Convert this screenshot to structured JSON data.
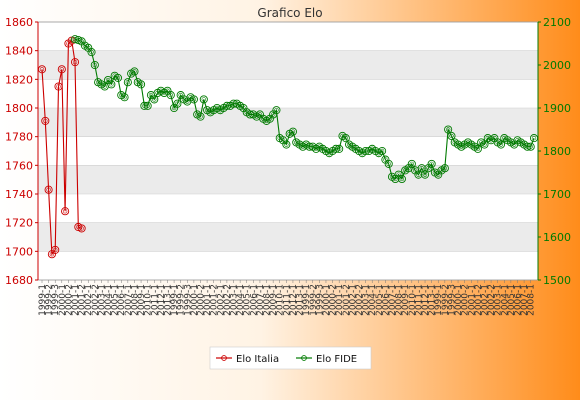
{
  "chart_data": {
    "type": "line",
    "title": "Grafico Elo",
    "colors": {
      "italia": "#cc0000",
      "fide": "#007a00",
      "band": "#ebebeb",
      "grid": "#cfcfcf"
    },
    "left_axis": {
      "ylim": [
        1680,
        1860
      ],
      "ticks": [
        1680,
        1700,
        1720,
        1740,
        1760,
        1780,
        1800,
        1820,
        1840,
        1860
      ]
    },
    "right_axis": {
      "ylim": [
        1500,
        2100
      ],
      "ticks": [
        1500,
        1600,
        1700,
        1800,
        1900,
        2000,
        2100
      ]
    },
    "x_count": 150,
    "x_tick_labels": [
      "1999-1",
      "1999-2",
      "1999-3",
      "2000-1",
      "2000-2",
      "2001-1",
      "2001-2",
      "2002-1",
      "2002-2",
      "2003-1",
      "2004-1",
      "2005-1",
      "2006-1",
      "2007-1",
      "2008-1",
      "2009-1",
      "2010-1",
      "2011-1",
      "2012-1",
      "2013-1"
    ],
    "legend_position": "bottom-center",
    "series": [
      {
        "name": "Elo Italia",
        "axis": "left",
        "x": [
          0,
          1,
          2,
          3,
          4,
          5,
          6,
          7,
          8,
          9,
          10,
          11,
          12,
          13
        ],
        "values": [
          1827,
          1791,
          1743,
          1698,
          1701,
          1815,
          1827,
          1728,
          1845,
          1847,
          1832,
          1717,
          1716,
          null
        ]
      },
      {
        "name": "Elo FIDE",
        "axis": "right",
        "x": [
          10,
          11,
          12,
          13,
          14,
          15,
          16,
          17,
          18,
          19,
          20,
          21,
          22,
          23,
          24,
          25,
          26,
          27,
          28,
          29,
          30,
          31,
          32,
          33,
          34,
          35,
          36,
          37,
          38,
          39,
          40,
          41,
          42,
          43,
          44,
          45,
          46,
          47,
          48,
          49,
          50,
          51,
          52,
          53,
          54,
          55,
          56,
          57,
          58,
          59,
          60,
          61,
          62,
          63,
          64,
          65,
          66,
          67,
          68,
          69,
          70,
          71,
          72,
          73,
          74,
          75,
          76,
          77,
          78,
          79,
          80,
          81,
          82,
          83,
          84,
          85,
          86,
          87,
          88,
          89,
          90,
          91,
          92,
          93,
          94,
          95,
          96,
          97,
          98,
          99,
          100,
          101,
          102,
          103,
          104,
          105,
          106,
          107,
          108,
          109,
          110,
          111,
          112,
          113,
          114,
          115,
          116,
          117,
          118,
          119,
          120,
          121,
          122,
          123,
          124,
          125,
          126,
          127,
          128,
          129,
          130,
          131,
          132,
          133,
          134,
          135,
          136,
          137,
          138,
          139,
          140,
          141,
          142,
          143,
          144,
          145,
          146,
          147,
          148,
          149
        ],
        "values": [
          2060,
          2058,
          2055,
          2045,
          2040,
          2030,
          2000,
          1960,
          1955,
          1950,
          1965,
          1955,
          1975,
          1970,
          1930,
          1925,
          1960,
          1980,
          1985,
          1960,
          1955,
          1905,
          1905,
          1930,
          1920,
          1935,
          1940,
          1935,
          1940,
          1930,
          1900,
          1910,
          1930,
          1920,
          1915,
          1925,
          1920,
          1885,
          1880,
          1920,
          1895,
          1890,
          1895,
          1900,
          1895,
          1900,
          1905,
          1905,
          1910,
          1910,
          1905,
          1900,
          1890,
          1885,
          1885,
          1880,
          1885,
          1875,
          1870,
          1875,
          1885,
          1895,
          1830,
          1825,
          1815,
          1840,
          1845,
          1820,
          1815,
          1810,
          1815,
          1810,
          1810,
          1805,
          1810,
          1805,
          1800,
          1795,
          1800,
          1805,
          1805,
          1835,
          1830,
          1815,
          1810,
          1805,
          1800,
          1795,
          1800,
          1800,
          1805,
          1800,
          1795,
          1800,
          1780,
          1770,
          1740,
          1735,
          1745,
          1735,
          1755,
          1760,
          1770,
          1755,
          1745,
          1760,
          1745,
          1760,
          1770,
          1750,
          1745,
          1755,
          1760,
          1850,
          1835,
          1820,
          1815,
          1810,
          1815,
          1820,
          1815,
          1810,
          1805,
          1820,
          1815,
          1830,
          1825,
          1830,
          1820,
          1815,
          1830,
          1825,
          1820,
          1815,
          1825,
          1820,
          1815,
          1810,
          1810,
          1830
        ]
      }
    ]
  }
}
